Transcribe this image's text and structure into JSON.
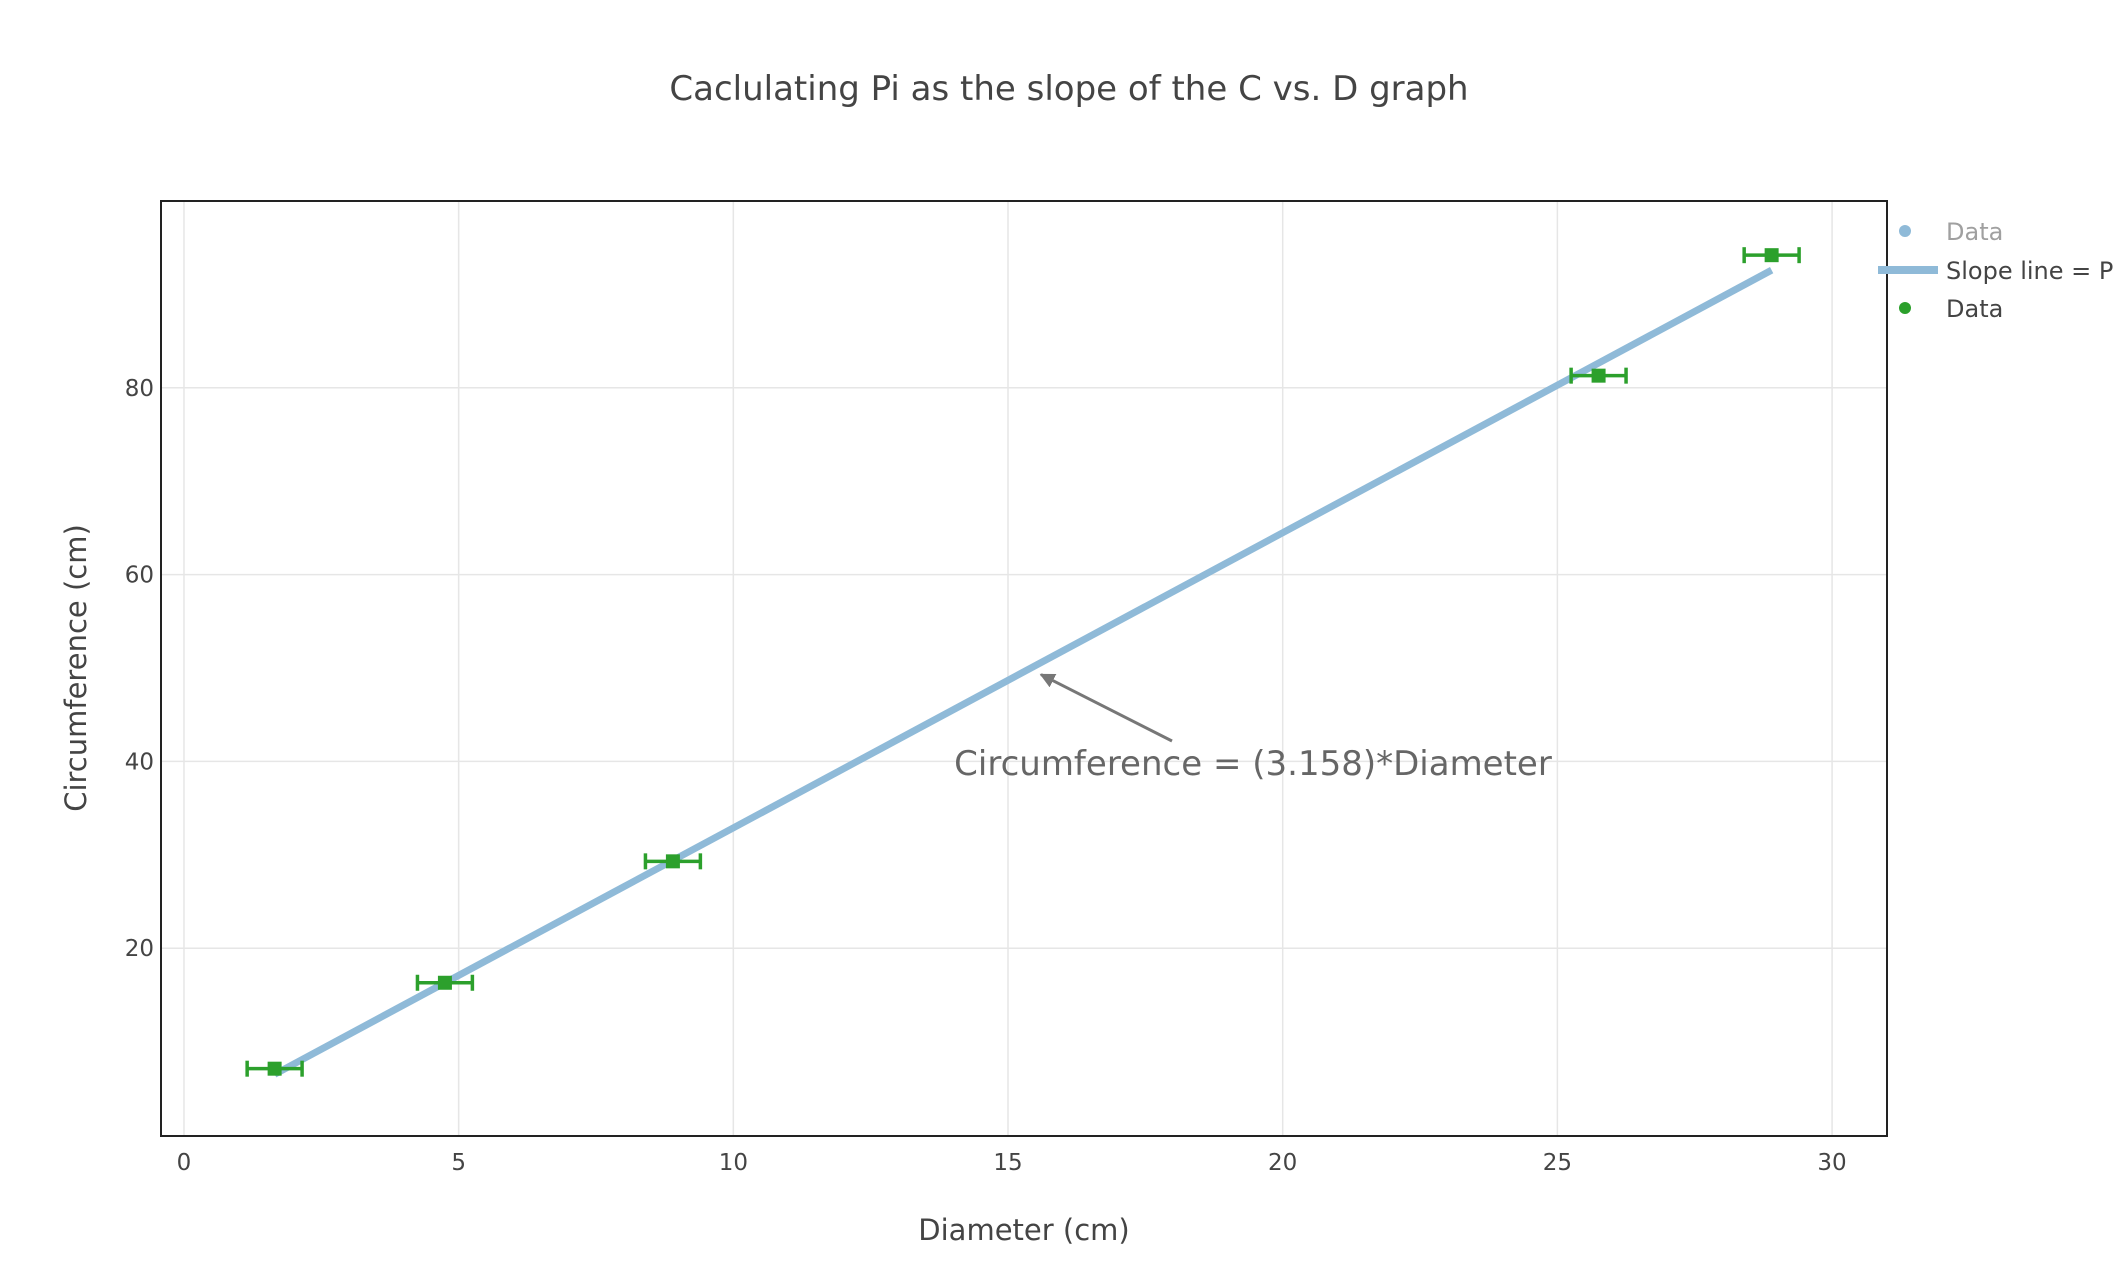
{
  "chart_data": {
    "type": "scatter",
    "title": "Caclulating Pi as the slope of the C vs. D graph",
    "xlabel": "Diameter (cm)",
    "ylabel": "Circumference (cm)",
    "xlim": [
      -0.4,
      31
    ],
    "ylim": [
      0,
      100
    ],
    "xticks": [
      0,
      5,
      10,
      15,
      20,
      25,
      30
    ],
    "yticks": [
      20,
      40,
      60,
      80
    ],
    "grid": true,
    "legend_position": "top-right",
    "series": [
      {
        "name": "Data",
        "kind": "markers",
        "color": "#8fbad8",
        "visible": false,
        "x": [
          1.65,
          4.75,
          8.9,
          25.75,
          28.9
        ],
        "y": [
          7.1,
          16.3,
          29.3,
          81.3,
          94.2
        ]
      },
      {
        "name": "Slope line = P",
        "kind": "line",
        "color": "#8fbad8",
        "x": [
          1.65,
          28.9
        ],
        "y": [
          6.5,
          92.6
        ]
      },
      {
        "name": "Data",
        "kind": "markers_with_x_error",
        "color": "#2ca02c",
        "x": [
          1.65,
          4.75,
          8.9,
          25.75,
          28.9
        ],
        "y": [
          7.1,
          16.3,
          29.3,
          81.3,
          94.2
        ],
        "x_error": [
          0.5,
          0.5,
          0.5,
          0.5,
          0.5
        ]
      }
    ],
    "annotations": [
      {
        "text": "Circumference = (3.158)*Diameter",
        "arrow_to": {
          "x": 15.6,
          "y": 49.3
        },
        "color": "#666666"
      }
    ]
  }
}
